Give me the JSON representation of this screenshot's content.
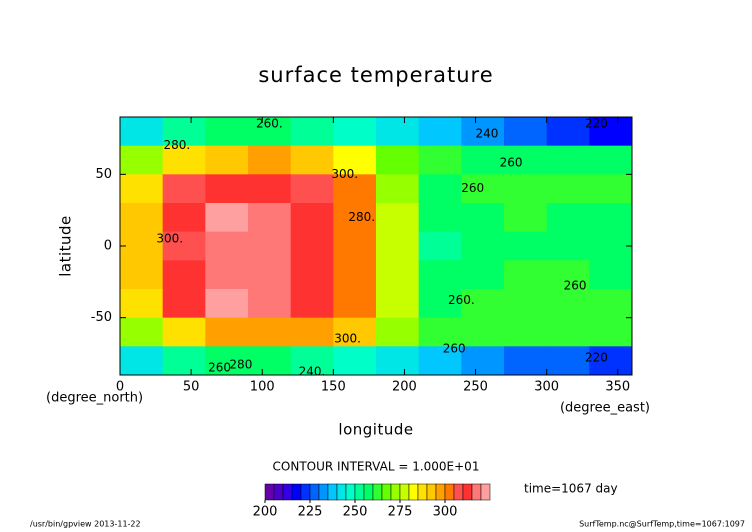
{
  "chart_data": {
    "type": "contour",
    "title": "surface temperature",
    "x_label": "longitude",
    "y_label": "latitude",
    "x_units": "(degree_east)",
    "y_units": "(degree_north)",
    "xlim": [
      0,
      360
    ],
    "ylim": [
      -90,
      90
    ],
    "xticks": [
      0,
      50,
      100,
      150,
      200,
      250,
      300,
      350
    ],
    "yticks": [
      -50,
      0,
      50
    ],
    "x": [
      15,
      45,
      75,
      105,
      135,
      165,
      195,
      225,
      255,
      285,
      315,
      345
    ],
    "y": [
      80,
      60,
      40,
      20,
      0,
      -20,
      -40,
      -60,
      -80
    ],
    "values": [
      [
        240,
        250,
        255,
        255,
        250,
        245,
        240,
        235,
        230,
        225,
        220,
        215
      ],
      [
        270,
        285,
        290,
        295,
        290,
        280,
        265,
        260,
        258,
        255,
        255,
        255
      ],
      [
        285,
        305,
        310,
        310,
        305,
        300,
        270,
        258,
        260,
        262,
        262,
        262
      ],
      [
        290,
        310,
        320,
        315,
        310,
        300,
        275,
        255,
        258,
        260,
        258,
        258
      ],
      [
        290,
        305,
        318,
        318,
        310,
        300,
        275,
        250,
        255,
        258,
        258,
        258
      ],
      [
        290,
        310,
        318,
        315,
        310,
        300,
        275,
        255,
        258,
        260,
        260,
        258
      ],
      [
        285,
        310,
        322,
        318,
        310,
        300,
        275,
        258,
        260,
        262,
        260,
        260
      ],
      [
        270,
        285,
        295,
        295,
        295,
        290,
        270,
        262,
        262,
        262,
        262,
        262
      ],
      [
        240,
        250,
        255,
        255,
        250,
        245,
        240,
        238,
        232,
        228,
        225,
        220
      ]
    ],
    "contour_labels": [
      {
        "x": 105,
        "y": 85,
        "text": "260."
      },
      {
        "x": 40,
        "y": 70,
        "text": "280."
      },
      {
        "x": 158,
        "y": 50,
        "text": "300."
      },
      {
        "x": 335,
        "y": 85,
        "text": "220"
      },
      {
        "x": 258,
        "y": 78,
        "text": "240"
      },
      {
        "x": 275,
        "y": 58,
        "text": "260"
      },
      {
        "x": 248,
        "y": 40,
        "text": "260"
      },
      {
        "x": 170,
        "y": 20,
        "text": "280."
      },
      {
        "x": 35,
        "y": 5,
        "text": "300."
      },
      {
        "x": 240,
        "y": -38,
        "text": "260."
      },
      {
        "x": 320,
        "y": -28,
        "text": "260"
      },
      {
        "x": 160,
        "y": -65,
        "text": "300."
      },
      {
        "x": 235,
        "y": -72,
        "text": "260"
      },
      {
        "x": 85,
        "y": -83,
        "text": "280"
      },
      {
        "x": 135,
        "y": -88,
        "text": "240."
      },
      {
        "x": 70,
        "y": -85,
        "text": "260"
      },
      {
        "x": 335,
        "y": -78,
        "text": "220"
      }
    ],
    "contour_interval": "CONTOUR INTERVAL = 1.000E+01",
    "time_label": "time=1067 day",
    "colorbar": {
      "lim": [
        200,
        325
      ],
      "ticks": [
        200,
        225,
        250,
        275,
        300
      ],
      "colors": [
        "#6600aa",
        "#4b00c8",
        "#3200e6",
        "#0000ff",
        "#0032ff",
        "#0064ff",
        "#0096ff",
        "#00c8ff",
        "#00e6e6",
        "#00ffc8",
        "#00ff96",
        "#00ff64",
        "#32ff32",
        "#64ff00",
        "#96ff00",
        "#c8ff00",
        "#ffff00",
        "#ffe100",
        "#ffc800",
        "#ffa000",
        "#ff7800",
        "#ff5050",
        "#ff3232",
        "#ff7878",
        "#ffa0a0"
      ]
    },
    "footer_left": "/usr/bin/gpview  2013-11-22",
    "footer_right": "SurfTemp.nc@SurfTemp,time=1067:1097"
  }
}
